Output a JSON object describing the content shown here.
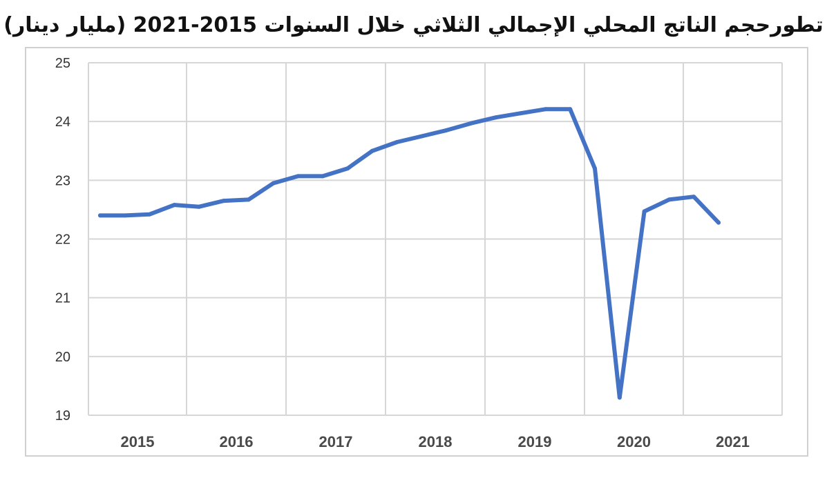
{
  "chart_data": {
    "type": "line",
    "title": "تطورحجم الناتج المحلي الإجمالي الثلاثي خلال السنوات 2015-2021 (مليار دينار)",
    "xlabel": "",
    "ylabel": "",
    "ylim": [
      19,
      25
    ],
    "y_ticks": [
      19,
      20,
      21,
      22,
      23,
      24,
      25
    ],
    "grid": true,
    "legend": "none",
    "x_tick_labels": [
      "2015",
      "2016",
      "2017",
      "2018",
      "2019",
      "2020",
      "2021"
    ],
    "series": [
      {
        "color": "#4472c4",
        "values": [
          22.4,
          22.4,
          22.42,
          22.58,
          22.55,
          22.65,
          22.67,
          22.95,
          23.07,
          23.07,
          23.2,
          23.5,
          23.65,
          23.75,
          23.85,
          23.97,
          24.07,
          24.14,
          24.21,
          24.21,
          23.2,
          19.3,
          22.47,
          22.67,
          22.72,
          22.28
        ]
      }
    ]
  }
}
